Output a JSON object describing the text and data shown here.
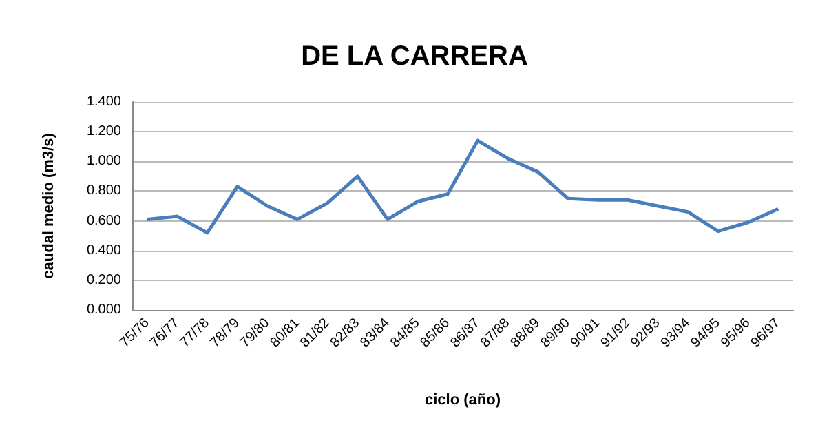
{
  "chart_data": {
    "type": "line",
    "title": "DE LA CARRERA",
    "xlabel": "ciclo (año)",
    "ylabel": "caudal medio (m3/s)",
    "categories": [
      "75/76",
      "76/77",
      "77/78",
      "78/79",
      "79/80",
      "80/81",
      "81/82",
      "82/83",
      "83/84",
      "84/85",
      "85/86",
      "86/87",
      "87/88",
      "88/89",
      "89/90",
      "90/91",
      "91/92",
      "92/93",
      "93/94",
      "94/95",
      "95/96",
      "96/97"
    ],
    "series": [
      {
        "color": "#4a7ebb",
        "values": [
          0.61,
          0.63,
          0.52,
          0.83,
          0.7,
          0.61,
          0.72,
          0.9,
          0.61,
          0.73,
          0.78,
          1.14,
          1.02,
          0.93,
          0.75,
          0.74,
          0.74,
          0.7,
          0.66,
          0.53,
          0.59,
          0.68
        ]
      }
    ],
    "ylim": [
      0,
      1.4
    ],
    "yticks": [
      {
        "value": 0,
        "label": "0.000"
      },
      {
        "value": 0.2,
        "label": "0.200"
      },
      {
        "value": 0.4,
        "label": "0.400"
      },
      {
        "value": 0.6,
        "label": "0.600"
      },
      {
        "value": 0.8,
        "label": "0.800"
      },
      {
        "value": 1,
        "label": "1.000"
      },
      {
        "value": 1.2,
        "label": "1.200"
      },
      {
        "value": 1.4,
        "label": "1.400"
      }
    ],
    "grid": "y",
    "marker": "none",
    "line_style": "solid"
  }
}
